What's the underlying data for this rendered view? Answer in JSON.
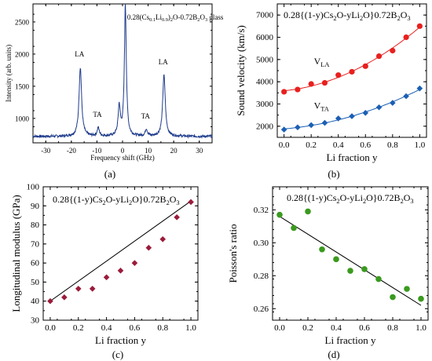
{
  "colors": {
    "spectrum": "#1f3b8c",
    "la_series": "#e8201e",
    "ta_series": "#1b5fb4",
    "modulus_series": "#9b1b3a",
    "poisson_series": "#3a9a1e",
    "fit_line": "#000000"
  },
  "panels": {
    "a": {
      "caption": "(a)"
    },
    "b": {
      "caption": "(b)"
    },
    "c": {
      "caption": "(c)"
    },
    "d": {
      "caption": "(d)"
    }
  },
  "chart_data": [
    {
      "id": "a",
      "type": "line",
      "title": "",
      "annotation": {
        "main": "0.28(Cs",
        "s1": "0.1",
        "m2": "Li",
        "s2": "0.9",
        "m3": ")",
        "s3": "2",
        "m4": "O-0.72B",
        "s4": "2",
        "m5": "O",
        "s5": "3",
        "m6": " glass"
      },
      "xlabel": "Frequency shift (GHz)",
      "ylabel": "Intensity (arb. units)",
      "xlim": [
        -35,
        35
      ],
      "ylim": [
        620,
        2780
      ],
      "xticks": [
        -30,
        -20,
        -10,
        0,
        10,
        20,
        30
      ],
      "yticks": [
        1000,
        1500,
        2000,
        2500
      ],
      "baseline": 720,
      "peaks": [
        {
          "label": "LA",
          "x": -16.5,
          "height": 1790,
          "width": 0.6
        },
        {
          "label": "TA",
          "x": -9.5,
          "height": 850,
          "width": 0.5
        },
        {
          "label": "",
          "x": -1.3,
          "height": 1180,
          "width": 0.5
        },
        {
          "label": "",
          "x": 1.1,
          "height": 2780,
          "width": 0.45
        },
        {
          "label": "TA",
          "x": 9.3,
          "height": 830,
          "width": 0.5
        },
        {
          "label": "LA",
          "x": 16.2,
          "height": 1670,
          "width": 0.6
        }
      ]
    },
    {
      "id": "b",
      "type": "line",
      "title": "0.28{(1-y)Cs2O-yLi2O}0.72B2O3",
      "xlabel": "Li fraction y",
      "ylabel": "Sound velocity (km/s)",
      "xlim": [
        -0.05,
        1.05
      ],
      "ylim": [
        1500,
        7500
      ],
      "xticks": [
        0,
        0.2,
        0.4,
        0.6,
        0.8,
        1.0
      ],
      "yticks": [
        2000,
        3000,
        4000,
        5000,
        6000,
        7000
      ],
      "series": [
        {
          "name": "V_LA",
          "name_main": "V",
          "name_sub": "LA",
          "marker": "circle",
          "x": [
            0,
            0.1,
            0.2,
            0.3,
            0.4,
            0.5,
            0.6,
            0.7,
            0.8,
            0.9,
            1.0
          ],
          "values": [
            3550,
            3650,
            3900,
            3950,
            4300,
            4450,
            4700,
            5150,
            5400,
            6000,
            6500
          ]
        },
        {
          "name": "V_TA",
          "name_main": "V",
          "name_sub": "TA",
          "marker": "diamond",
          "x": [
            0,
            0.1,
            0.2,
            0.3,
            0.4,
            0.5,
            0.6,
            0.7,
            0.8,
            0.9,
            1.0
          ],
          "values": [
            1850,
            1950,
            2050,
            2150,
            2350,
            2450,
            2600,
            2850,
            3050,
            3350,
            3700
          ]
        }
      ]
    },
    {
      "id": "c",
      "type": "scatter",
      "title": "0.28{(1-y)Cs2O-yLi2O}0.72B2O3",
      "xlabel": "Li fraction y",
      "ylabel": "Longitudinal modulus (GPa)",
      "xlim": [
        -0.05,
        1.05
      ],
      "ylim": [
        30,
        100
      ],
      "xticks": [
        0,
        0.2,
        0.4,
        0.6,
        0.8,
        1.0
      ],
      "yticks": [
        30,
        40,
        50,
        60,
        70,
        80,
        90,
        100
      ],
      "series": [
        {
          "marker": "diamond",
          "x": [
            0,
            0.1,
            0.2,
            0.3,
            0.4,
            0.5,
            0.6,
            0.7,
            0.8,
            0.9,
            1.0
          ],
          "values": [
            40,
            42,
            46.5,
            46.5,
            52.5,
            56,
            60,
            68,
            72.5,
            84,
            92
          ]
        }
      ],
      "fit_line": {
        "x": [
          0,
          1.0
        ],
        "y": [
          40,
          92.5
        ]
      }
    },
    {
      "id": "d",
      "type": "scatter",
      "title": "0.28{(1-y)Cs2O-yLi2O}0.72B2O3",
      "xlabel": "Li fraction y",
      "ylabel": "Poisson's ratio",
      "xlim": [
        -0.05,
        1.05
      ],
      "ylim": [
        0.253,
        0.334
      ],
      "xticks": [
        0,
        0.2,
        0.4,
        0.6,
        0.8,
        1.0
      ],
      "yticks": [
        0.26,
        0.28,
        0.3,
        0.32
      ],
      "series": [
        {
          "marker": "circle",
          "x": [
            0,
            0.1,
            0.2,
            0.3,
            0.4,
            0.5,
            0.6,
            0.7,
            0.8,
            0.9,
            1.0
          ],
          "values": [
            0.317,
            0.309,
            0.319,
            0.296,
            0.29,
            0.283,
            0.284,
            0.278,
            0.267,
            0.272,
            0.266
          ]
        }
      ],
      "fit_line": {
        "x": [
          0,
          1.0
        ],
        "y": [
          0.316,
          0.262
        ]
      }
    }
  ]
}
